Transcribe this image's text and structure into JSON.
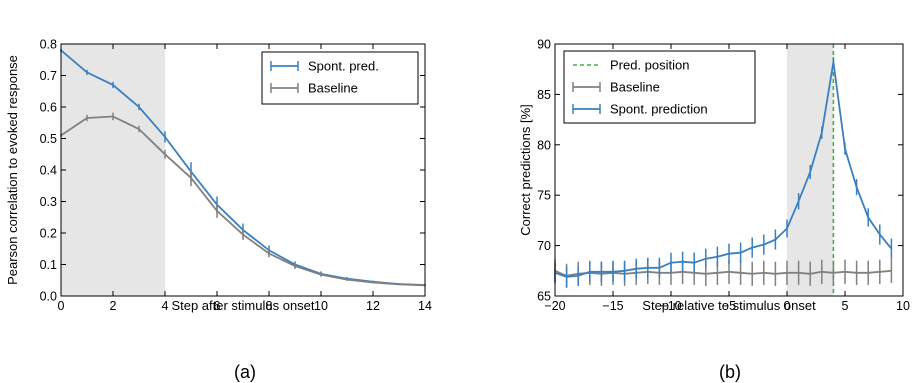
{
  "chart_data": [
    {
      "type": "line",
      "panel_label": "(a)",
      "xlabel": "Step after stimulus onset",
      "ylabel": "Pearson correlation to evoked response",
      "xlim": [
        0,
        14
      ],
      "ylim": [
        0,
        0.8
      ],
      "xticks": [
        "0",
        "2",
        "4",
        "6",
        "8",
        "10",
        "12",
        "14"
      ],
      "yticks": [
        "0.0",
        "0.1",
        "0.2",
        "0.3",
        "0.4",
        "0.5",
        "0.6",
        "0.7",
        "0.8"
      ],
      "grid": false,
      "legend_position": "top-right",
      "shaded_region": [
        0,
        4
      ],
      "shaded_color": "#e6e6e6",
      "series": [
        {
          "name": "Spont. pred.",
          "color": "#3a80c0",
          "x": [
            0,
            1,
            2,
            3,
            4,
            5,
            6,
            7,
            8,
            9,
            10,
            11,
            12,
            13,
            14
          ],
          "y": [
            0.78,
            0.71,
            0.67,
            0.6,
            0.505,
            0.395,
            0.29,
            0.21,
            0.145,
            0.1,
            0.07,
            0.055,
            0.045,
            0.038,
            0.035
          ],
          "err": [
            0.005,
            0.008,
            0.01,
            0.01,
            0.018,
            0.03,
            0.026,
            0.02,
            0.015,
            0.01,
            0.008,
            0.005,
            0.004,
            0.003,
            0.002
          ]
        },
        {
          "name": "Baseline",
          "color": "#808080",
          "x": [
            0,
            1,
            2,
            3,
            4,
            5,
            6,
            7,
            8,
            9,
            10,
            11,
            12,
            13,
            14
          ],
          "y": [
            0.51,
            0.565,
            0.57,
            0.53,
            0.45,
            0.375,
            0.27,
            0.195,
            0.135,
            0.095,
            0.068,
            0.052,
            0.043,
            0.037,
            0.034
          ],
          "err": [
            0.005,
            0.01,
            0.012,
            0.01,
            0.014,
            0.026,
            0.022,
            0.017,
            0.012,
            0.009,
            0.006,
            0.004,
            0.003,
            0.002,
            0.002
          ]
        }
      ]
    },
    {
      "type": "line",
      "panel_label": "(b)",
      "xlabel": "Step relative to stimulus onset",
      "ylabel": "Correct predictions [%]",
      "xlim": [
        -20,
        10
      ],
      "ylim": [
        65,
        90
      ],
      "xticks": [
        "−20",
        "−15",
        "−10",
        "−5",
        "0",
        "5",
        "10"
      ],
      "yticks": [
        "65",
        "70",
        "75",
        "80",
        "85",
        "90"
      ],
      "grid": false,
      "legend_position": "top-left",
      "shaded_region": [
        0,
        4
      ],
      "shaded_color": "#e6e6e6",
      "vline": {
        "name": "Pred. position",
        "x": 4,
        "color": "#4aaa44"
      },
      "series": [
        {
          "name": "Baseline",
          "color": "#808080",
          "x": [
            -20,
            -19,
            -18,
            -17,
            -16,
            -15,
            -14,
            -13,
            -12,
            -11,
            -10,
            -9,
            -8,
            -7,
            -6,
            -5,
            -4,
            -3,
            -2,
            -1,
            0,
            1,
            2,
            3,
            4,
            5,
            6,
            7,
            8,
            9
          ],
          "y": [
            67.5,
            67.0,
            67.2,
            67.3,
            67.2,
            67.3,
            67.2,
            67.3,
            67.4,
            67.3,
            67.3,
            67.4,
            67.3,
            67.2,
            67.3,
            67.4,
            67.3,
            67.2,
            67.3,
            67.2,
            67.3,
            67.3,
            67.2,
            67.4,
            67.3,
            67.4,
            67.3,
            67.3,
            67.4,
            67.5
          ],
          "err": [
            1.2,
            1.2,
            1.2,
            1.2,
            1.2,
            1.2,
            1.2,
            1.2,
            1.2,
            1.2,
            1.2,
            1.2,
            1.2,
            1.2,
            1.2,
            1.2,
            1.2,
            1.2,
            1.2,
            1.2,
            1.2,
            1.2,
            1.2,
            1.2,
            1.2,
            1.2,
            1.2,
            1.2,
            1.2,
            1.2
          ]
        },
        {
          "name": "Spont. prediction",
          "color": "#3a80c0",
          "x": [
            -20,
            -19,
            -18,
            -17,
            -16,
            -15,
            -14,
            -13,
            -12,
            -11,
            -10,
            -9,
            -8,
            -7,
            -6,
            -5,
            -4,
            -3,
            -2,
            -1,
            0,
            1,
            2,
            3,
            4,
            5,
            6,
            7,
            8,
            9
          ],
          "y": [
            67.3,
            66.9,
            67.0,
            67.4,
            67.4,
            67.4,
            67.5,
            67.7,
            67.8,
            67.8,
            68.3,
            68.4,
            68.3,
            68.7,
            68.9,
            69.2,
            69.3,
            69.8,
            70.1,
            70.6,
            71.7,
            74.4,
            77.3,
            81.2,
            88.2,
            79.6,
            75.8,
            72.8,
            71.1,
            69.7
          ],
          "err": [
            1.0,
            1.0,
            1.0,
            1.0,
            1.0,
            1.0,
            1.0,
            1.0,
            1.0,
            1.0,
            1.0,
            1.0,
            1.0,
            1.0,
            1.0,
            1.0,
            1.0,
            1.0,
            1.0,
            1.0,
            0.9,
            0.8,
            0.7,
            0.6,
            0.5,
            0.6,
            0.8,
            0.9,
            1.0,
            1.0
          ]
        }
      ]
    }
  ]
}
